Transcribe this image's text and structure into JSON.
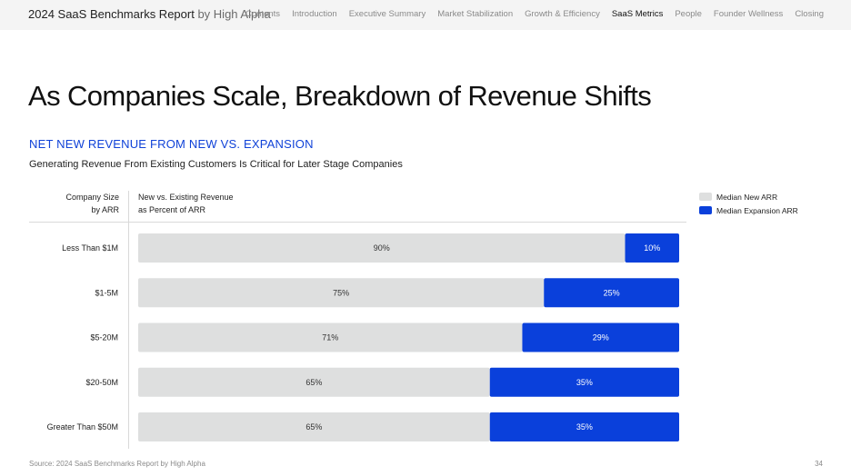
{
  "header": {
    "title": "2024 SaaS Benchmarks Report",
    "by": "by High Alpha",
    "nav": [
      "Contents",
      "Introduction",
      "Executive Summary",
      "Market Stabilization",
      "Growth & Efficiency",
      "SaaS Metrics",
      "People",
      "Founder Wellness",
      "Closing"
    ],
    "active_nav": "SaaS Metrics"
  },
  "headline": "As Companies Scale, Breakdown of Revenue Shifts",
  "section_label": "NET NEW REVENUE FROM NEW VS. EXPANSION",
  "subtitle": "Generating Revenue From Existing Customers Is Critical for Later Stage Companies",
  "columns": {
    "size_line1": "Company Size",
    "size_line2": "by ARR",
    "revenue_line1": "New vs. Existing Revenue",
    "revenue_line2": "as Percent of ARR"
  },
  "chart_data": {
    "type": "bar",
    "orientation": "horizontal",
    "stacked": true,
    "categories": [
      "Less Than  $1M",
      "$1-5M",
      "$5-20M",
      "$20-50M",
      "Greater Than $50M"
    ],
    "series": [
      {
        "name": "Median New ARR",
        "values": [
          90,
          75,
          71,
          65,
          65
        ],
        "color": "#dedfdf"
      },
      {
        "name": "Median Expansion ARR",
        "values": [
          10,
          25,
          29,
          35,
          35
        ],
        "color": "#0a40db"
      }
    ],
    "value_suffix": "%",
    "xlim": [
      0,
      100
    ],
    "legend_position": "top-right"
  },
  "footer": {
    "source": "Source: 2024 SaaS Benchmarks Report by High Alpha",
    "page": "34"
  }
}
